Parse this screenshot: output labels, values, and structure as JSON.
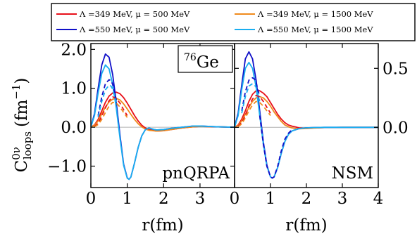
{
  "chart_data": {
    "type": "line",
    "legend": {
      "placement": "top",
      "entries": [
        {
          "label": "Λ =349 MeV, μ = 500 MeV",
          "color": "#e8101a"
        },
        {
          "label": "Λ =349 MeV, μ = 1500 MeV",
          "color": "#f08a1c"
        },
        {
          "label": "Λ =550 MeV, μ = 500 MeV",
          "color": "#1010c8"
        },
        {
          "label": "Λ =550 MeV, μ = 1500 MeV",
          "color": "#1aaef0"
        }
      ]
    },
    "ylabel": {
      "base": "C",
      "sup": "0ν",
      "sub": "loops",
      "unit": "(fm",
      "unit_sup": "−1",
      "unit_close": ")"
    },
    "panels": [
      {
        "label": "pnQRPA",
        "annotation": {
          "sup": "76",
          "text": "Ge"
        },
        "xlabel": "r(fm)",
        "xlim": [
          0,
          3.95
        ],
        "ylim": [
          -1.55,
          2.15
        ],
        "xticks": [
          0,
          1,
          2,
          3
        ],
        "xtick_labels": [
          "0",
          "1",
          "2",
          "3"
        ],
        "yticks": [
          -1.0,
          0.0,
          1.0,
          2.0
        ],
        "ytick_labels": [
          "−1.0",
          "0.0",
          "1.0",
          "2.0"
        ],
        "ytick_side": "left",
        "series": [
          {
            "color": "#e8101a",
            "dash": false,
            "x": [
              0,
              0.1,
              0.2,
              0.3,
              0.4,
              0.5,
              0.6,
              0.7,
              0.8,
              0.9,
              1.0,
              1.1,
              1.2,
              1.3,
              1.4,
              1.5,
              1.6,
              1.8,
              2.0,
              2.2,
              2.5,
              2.8,
              3.0,
              3.5,
              3.95
            ],
            "y": [
              0,
              0.06,
              0.2,
              0.42,
              0.64,
              0.8,
              0.88,
              0.9,
              0.86,
              0.76,
              0.62,
              0.46,
              0.3,
              0.16,
              0.05,
              -0.02,
              -0.06,
              -0.1,
              -0.09,
              -0.06,
              -0.02,
              0.01,
              0.02,
              0.01,
              0
            ]
          },
          {
            "color": "#f08a1c",
            "dash": false,
            "x": [
              0,
              0.1,
              0.2,
              0.3,
              0.4,
              0.5,
              0.6,
              0.7,
              0.8,
              0.9,
              1.0,
              1.1,
              1.2,
              1.3,
              1.4,
              1.5,
              1.6,
              1.8,
              2.0,
              2.2,
              2.5,
              2.8,
              3.0,
              3.5,
              3.95
            ],
            "y": [
              0,
              0.05,
              0.16,
              0.34,
              0.52,
              0.65,
              0.72,
              0.74,
              0.7,
              0.6,
              0.47,
              0.33,
              0.2,
              0.09,
              0.01,
              -0.05,
              -0.08,
              -0.1,
              -0.09,
              -0.06,
              -0.02,
              0.01,
              0.02,
              0.01,
              0
            ]
          },
          {
            "color": "#1010c8",
            "dash": false,
            "x": [
              0,
              0.1,
              0.2,
              0.3,
              0.4,
              0.5,
              0.6,
              0.7,
              0.8,
              0.9,
              1.0,
              1.05,
              1.1,
              1.2,
              1.3,
              1.4,
              1.5,
              1.6,
              1.7,
              1.8,
              2.0,
              2.2,
              2.5,
              2.8,
              3.0,
              3.5,
              3.95
            ],
            "y": [
              0,
              0.35,
              1.0,
              1.6,
              1.88,
              1.8,
              1.35,
              0.62,
              -0.2,
              -0.95,
              -1.3,
              -1.34,
              -1.28,
              -0.92,
              -0.52,
              -0.22,
              -0.06,
              -0.02,
              -0.05,
              -0.07,
              -0.06,
              -0.03,
              0,
              0.03,
              0.03,
              0.01,
              0
            ]
          },
          {
            "color": "#1aaef0",
            "dash": false,
            "x": [
              0,
              0.1,
              0.2,
              0.3,
              0.4,
              0.5,
              0.6,
              0.7,
              0.8,
              0.9,
              1.0,
              1.05,
              1.1,
              1.2,
              1.3,
              1.4,
              1.5,
              1.6,
              1.7,
              1.8,
              2.0,
              2.2,
              2.5,
              2.8,
              3.0,
              3.5,
              3.95
            ],
            "y": [
              0,
              0.3,
              0.88,
              1.38,
              1.6,
              1.5,
              1.1,
              0.48,
              -0.28,
              -0.98,
              -1.31,
              -1.34,
              -1.28,
              -0.92,
              -0.52,
              -0.22,
              -0.06,
              -0.02,
              -0.05,
              -0.07,
              -0.06,
              -0.03,
              0,
              0.03,
              0.03,
              0.01,
              0
            ]
          },
          {
            "color": "#e8101a",
            "dash": true,
            "x": [
              0.1,
              0.2,
              0.3,
              0.4,
              0.5,
              0.6,
              0.7,
              0.8,
              0.9,
              1.0
            ],
            "y": [
              0.02,
              0.1,
              0.28,
              0.5,
              0.68,
              0.78,
              0.74,
              0.62,
              0.45,
              0.3
            ]
          },
          {
            "color": "#f08a1c",
            "dash": true,
            "x": [
              0.1,
              0.2,
              0.3,
              0.4,
              0.5,
              0.6,
              0.7,
              0.8,
              0.9,
              1.0
            ],
            "y": [
              0.01,
              0.07,
              0.2,
              0.38,
              0.54,
              0.64,
              0.62,
              0.52,
              0.38,
              0.25
            ]
          },
          {
            "color": "#1010c8",
            "dash": true,
            "x": [
              0.2,
              0.3,
              0.4,
              0.5,
              0.55,
              0.6,
              0.7
            ],
            "y": [
              0.3,
              0.78,
              1.12,
              1.22,
              1.2,
              1.1,
              0.7
            ]
          },
          {
            "color": "#1aaef0",
            "dash": true,
            "x": [
              0.2,
              0.3,
              0.4,
              0.5,
              0.55,
              0.6,
              0.7
            ],
            "y": [
              0.26,
              0.66,
              0.96,
              1.08,
              1.06,
              0.98,
              0.62
            ]
          }
        ]
      },
      {
        "label": "NSM",
        "xlabel": "r(fm)",
        "xlim": [
          0,
          4.0
        ],
        "ylim": [
          -0.51,
          0.71
        ],
        "xticks": [
          0,
          1,
          2,
          3,
          4
        ],
        "xtick_labels": [
          "0",
          "1",
          "2",
          "3",
          "4"
        ],
        "yticks": [
          0.0,
          0.5
        ],
        "ytick_labels": [
          "0.0",
          "0.5"
        ],
        "ytick_side": "right",
        "series": [
          {
            "color": "#e8101a",
            "dash": false,
            "x": [
              0,
              0.1,
              0.2,
              0.3,
              0.4,
              0.5,
              0.6,
              0.7,
              0.8,
              0.9,
              1.0,
              1.1,
              1.2,
              1.3,
              1.4,
              1.5,
              1.6,
              1.7,
              1.8,
              2.0,
              2.2,
              2.5,
              3.0,
              4.0
            ],
            "y": [
              0,
              0.02,
              0.07,
              0.14,
              0.22,
              0.28,
              0.31,
              0.31,
              0.29,
              0.26,
              0.21,
              0.16,
              0.11,
              0.07,
              0.04,
              0.02,
              0.01,
              0.003,
              -0.005,
              -0.008,
              -0.005,
              -0.002,
              0,
              0
            ]
          },
          {
            "color": "#f08a1c",
            "dash": false,
            "x": [
              0,
              0.1,
              0.2,
              0.3,
              0.4,
              0.5,
              0.6,
              0.7,
              0.8,
              0.9,
              1.0,
              1.1,
              1.2,
              1.3,
              1.4,
              1.5,
              1.6,
              1.7,
              1.8,
              2.0,
              2.2,
              2.5,
              3.0,
              4.0
            ],
            "y": [
              0,
              0.015,
              0.055,
              0.11,
              0.17,
              0.22,
              0.25,
              0.26,
              0.25,
              0.22,
              0.18,
              0.13,
              0.09,
              0.05,
              0.02,
              0.005,
              -0.005,
              -0.01,
              -0.012,
              -0.01,
              -0.006,
              -0.002,
              0,
              0
            ]
          },
          {
            "color": "#1010c8",
            "dash": false,
            "x": [
              0,
              0.1,
              0.2,
              0.3,
              0.4,
              0.5,
              0.6,
              0.7,
              0.8,
              0.9,
              1.0,
              1.05,
              1.1,
              1.2,
              1.3,
              1.4,
              1.5,
              1.6,
              1.8,
              2.0,
              2.2,
              2.5,
              3.0,
              4.0
            ],
            "y": [
              0,
              0.12,
              0.36,
              0.58,
              0.64,
              0.58,
              0.4,
              0.14,
              -0.12,
              -0.32,
              -0.42,
              -0.43,
              -0.42,
              -0.34,
              -0.22,
              -0.12,
              -0.06,
              -0.03,
              -0.01,
              -0.004,
              -0.002,
              0,
              0,
              0
            ]
          },
          {
            "color": "#1aaef0",
            "dash": false,
            "x": [
              0,
              0.1,
              0.2,
              0.3,
              0.4,
              0.5,
              0.6,
              0.7,
              0.8,
              0.9,
              1.0,
              1.05,
              1.1,
              1.2,
              1.3,
              1.4,
              1.5,
              1.6,
              1.8,
              2.0,
              2.2,
              2.5,
              3.0,
              4.0
            ],
            "y": [
              0,
              0.1,
              0.32,
              0.5,
              0.55,
              0.5,
              0.34,
              0.1,
              -0.14,
              -0.33,
              -0.42,
              -0.43,
              -0.42,
              -0.34,
              -0.22,
              -0.12,
              -0.06,
              -0.03,
              -0.01,
              -0.004,
              -0.002,
              0,
              0,
              0
            ]
          },
          {
            "color": "#e8101a",
            "dash": true,
            "x": [
              0.1,
              0.2,
              0.3,
              0.4,
              0.5,
              0.6,
              0.7,
              0.8,
              0.9,
              1.0
            ],
            "y": [
              0.01,
              0.04,
              0.1,
              0.18,
              0.24,
              0.27,
              0.26,
              0.22,
              0.17,
              0.12
            ]
          },
          {
            "color": "#f08a1c",
            "dash": true,
            "x": [
              0.1,
              0.2,
              0.3,
              0.4,
              0.5,
              0.6,
              0.7,
              0.8,
              0.9,
              1.0
            ],
            "y": [
              0.005,
              0.03,
              0.08,
              0.14,
              0.19,
              0.22,
              0.21,
              0.18,
              0.14,
              0.1
            ]
          },
          {
            "color": "#1010c8",
            "dash": true,
            "x": [
              0.2,
              0.3,
              0.4,
              0.5,
              0.55,
              0.6,
              0.7
            ],
            "y": [
              0.14,
              0.3,
              0.4,
              0.42,
              0.41,
              0.38,
              0.26
            ]
          },
          {
            "color": "#1aaef0",
            "dash": true,
            "x": [
              0.2,
              0.3,
              0.4,
              0.5,
              0.55,
              0.6,
              0.7
            ],
            "y": [
              0.12,
              0.26,
              0.35,
              0.37,
              0.36,
              0.34,
              0.22
            ]
          },
          {
            "color": "#1010c8",
            "dash": true,
            "x": [
              0.7,
              0.8,
              0.9,
              1.0,
              1.05,
              1.1,
              1.2,
              1.3,
              1.4,
              1.5,
              1.6
            ],
            "y": [
              0.1,
              -0.14,
              -0.33,
              -0.42,
              -0.43,
              -0.42,
              -0.33,
              -0.2,
              -0.1,
              -0.05,
              -0.02
            ]
          }
        ]
      }
    ]
  }
}
